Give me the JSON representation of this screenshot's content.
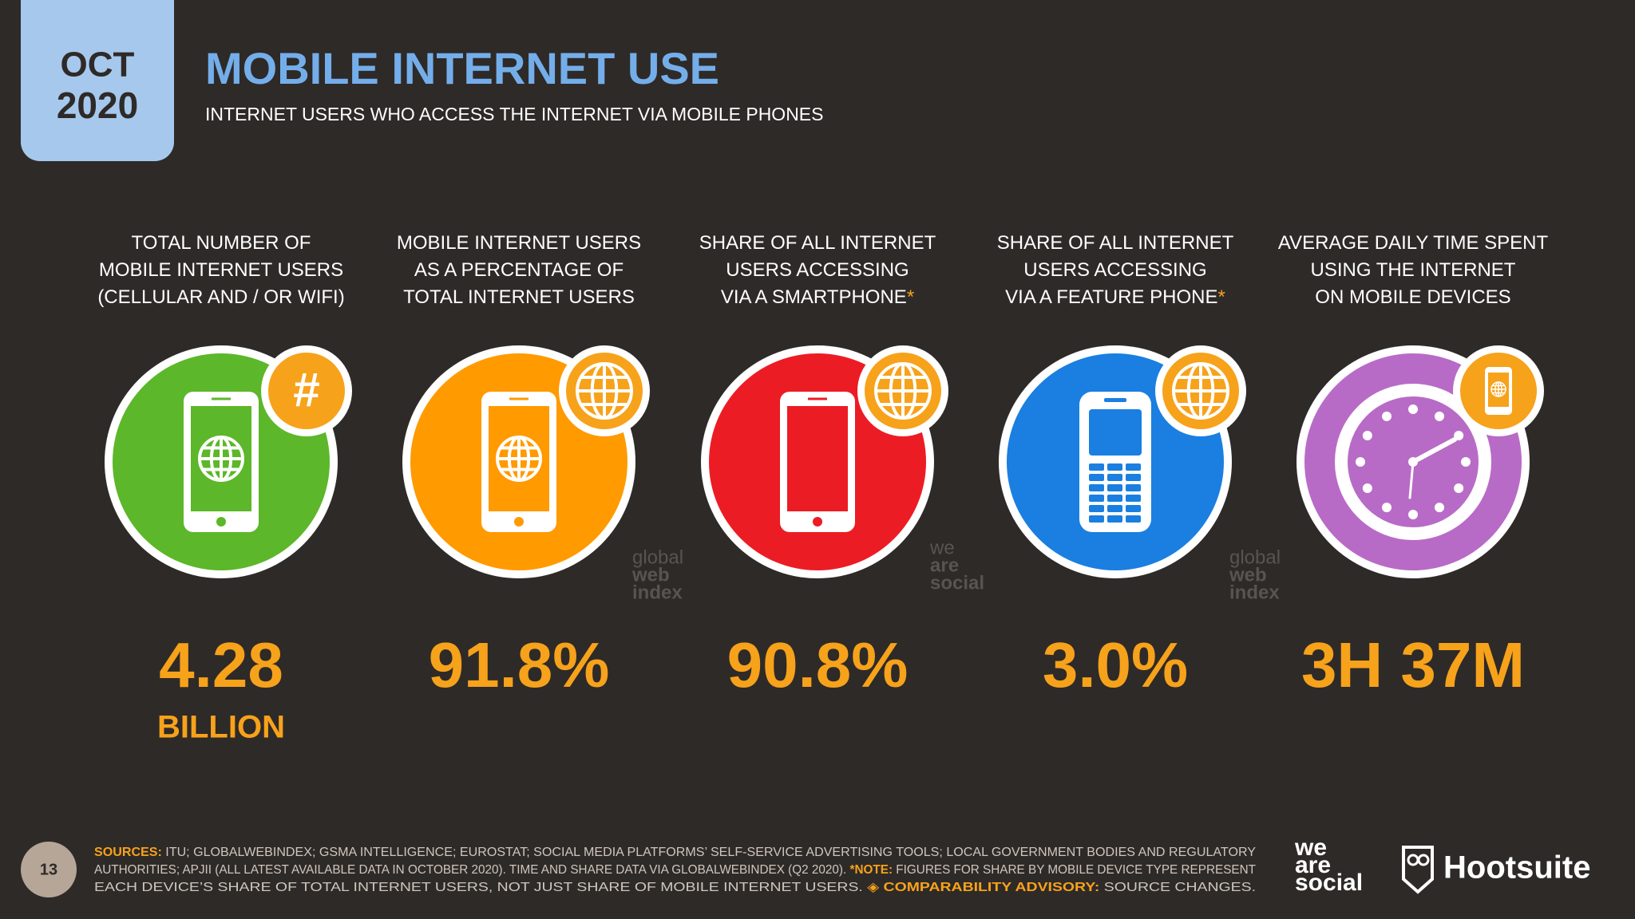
{
  "header": {
    "month": "OCT",
    "year": "2020",
    "title": "MOBILE INTERNET USE",
    "subtitle": "INTERNET USERS WHO ACCESS THE INTERNET VIA MOBILE PHONES"
  },
  "stats": [
    {
      "label_lines": [
        "TOTAL NUMBER OF",
        "MOBILE INTERNET USERS",
        "(CELLULAR AND / OR WIFI)"
      ],
      "color": "#5cb72a",
      "badge": "#",
      "value": "4.28",
      "unit": "BILLION"
    },
    {
      "label_lines": [
        "MOBILE INTERNET USERS",
        "AS A PERCENTAGE OF",
        "TOTAL INTERNET USERS"
      ],
      "color": "#ff9a00",
      "value": "91.8%"
    },
    {
      "label_lines": [
        "SHARE OF ALL INTERNET",
        "USERS ACCESSING",
        "VIA A SMARTPHONE"
      ],
      "marker": "*",
      "color": "#ec1c24",
      "value": "90.8%"
    },
    {
      "label_lines": [
        "SHARE OF ALL INTERNET",
        "USERS ACCESSING",
        "VIA A FEATURE PHONE"
      ],
      "marker": "*",
      "color": "#1a7fe0",
      "value": "3.0%"
    },
    {
      "label_lines": [
        "AVERAGE DAILY TIME SPENT",
        "USING THE INTERNET",
        "ON MOBILE DEVICES"
      ],
      "color": "#b86bc6",
      "value": "3H 37M"
    }
  ],
  "watermarks": [
    [
      "global",
      "web",
      "index"
    ],
    [
      "we",
      "are",
      "social"
    ],
    [
      "global",
      "web",
      "index"
    ]
  ],
  "footer": {
    "page": "13",
    "lines": [
      [
        {
          "text": "SOURCES:",
          "bold": true
        },
        {
          "text": " ITU; GLOBALWEBINDEX; GSMA INTELLIGENCE; EUROSTAT; SOCIAL MEDIA PLATFORMS’ SELF-SERVICE ADVERTISING TOOLS; LOCAL GOVERNMENT BODIES AND REGULATORY"
        }
      ],
      [
        {
          "text": "AUTHORITIES; APJII (ALL LATEST AVAILABLE DATA IN OCTOBER 2020). TIME AND SHARE DATA VIA GLOBALWEBINDEX (Q2 2020). "
        },
        {
          "text": "*NOTE:",
          "bold": true
        },
        {
          "text": " FIGURES FOR SHARE BY MOBILE DEVICE TYPE REPRESENT"
        }
      ],
      [
        {
          "text": "EACH DEVICE’S SHARE OF TOTAL INTERNET USERS, NOT JUST SHARE OF MOBILE INTERNET USERS. "
        },
        {
          "text": "◈ COMPARABILITY ADVISORY:",
          "bold": true
        },
        {
          "text": " SOURCE CHANGES."
        }
      ]
    ],
    "brand_one": [
      "we",
      "are",
      "social"
    ],
    "brand_two": "Hootsuite"
  }
}
